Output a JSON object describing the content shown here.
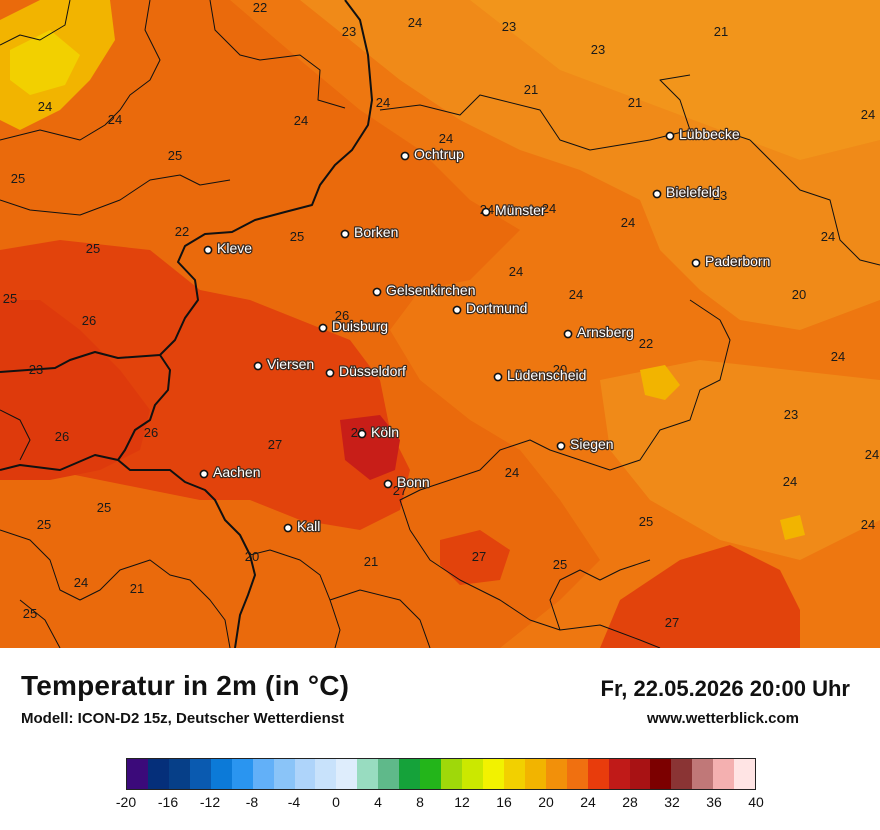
{
  "map": {
    "cities": [
      {
        "name": "Lübbecke"
      },
      {
        "name": "Ochtrup"
      },
      {
        "name": "Bielefeld"
      },
      {
        "name": "Münster"
      },
      {
        "name": "Kleve"
      },
      {
        "name": "Borken"
      },
      {
        "name": "Paderborn"
      },
      {
        "name": "Gelsenkirchen"
      },
      {
        "name": "Dortmund"
      },
      {
        "name": "Duisburg"
      },
      {
        "name": "Arnsberg"
      },
      {
        "name": "Viersen"
      },
      {
        "name": "Düsseldorf"
      },
      {
        "name": "Lüdenscheid"
      },
      {
        "name": "Köln"
      },
      {
        "name": "Siegen"
      },
      {
        "name": "Aachen"
      },
      {
        "name": "Bonn"
      },
      {
        "name": "Kall"
      }
    ],
    "temperatures": [
      "22",
      "23",
      "24",
      "23",
      "21",
      "23",
      "24",
      "21",
      "21",
      "24",
      "24",
      "24",
      "24",
      "25",
      "25",
      "24",
      "23",
      "22",
      "25",
      "25",
      "24",
      "24",
      "24",
      "24",
      "20",
      "25",
      "26",
      "26",
      "23",
      "24",
      "22",
      "20",
      "24",
      "23",
      "26",
      "27",
      "27",
      "24",
      "24",
      "26",
      "25",
      "25",
      "26",
      "24",
      "20",
      "21",
      "27",
      "25",
      "24",
      "21",
      "27",
      "25",
      "24",
      "24",
      "25"
    ]
  },
  "footer": {
    "title": "Temperatur in 2m (in °C)",
    "model": "Modell: ICON-D2 15z, Deutscher Wetterdienst",
    "datetime": "Fr, 22.05.2026 20:00 Uhr",
    "source": "www.wetterblick.com"
  },
  "scale": {
    "colors": [
      "#3b0a7a",
      "#052f7a",
      "#063f88",
      "#0a5ab0",
      "#0c7ad8",
      "#2a95f0",
      "#62b0f8",
      "#8ac4f8",
      "#aed4fa",
      "#c8e2fb",
      "#deedfc",
      "#98dcc0",
      "#5fb98a",
      "#15a23a",
      "#23b51a",
      "#9fd80a",
      "#cbe800",
      "#f2f200",
      "#f2d000",
      "#f2b400",
      "#f2900a",
      "#f07010",
      "#e83c0c",
      "#c01a18",
      "#a81214",
      "#7c0000",
      "#8a3434",
      "#c07878",
      "#f4b0b0",
      "#ffe4e4"
    ],
    "tick_labels": [
      "-20",
      "-16",
      "-12",
      "-8",
      "-4",
      "0",
      "4",
      "8",
      "12",
      "16",
      "20",
      "24",
      "28",
      "32",
      "36",
      "40"
    ]
  }
}
